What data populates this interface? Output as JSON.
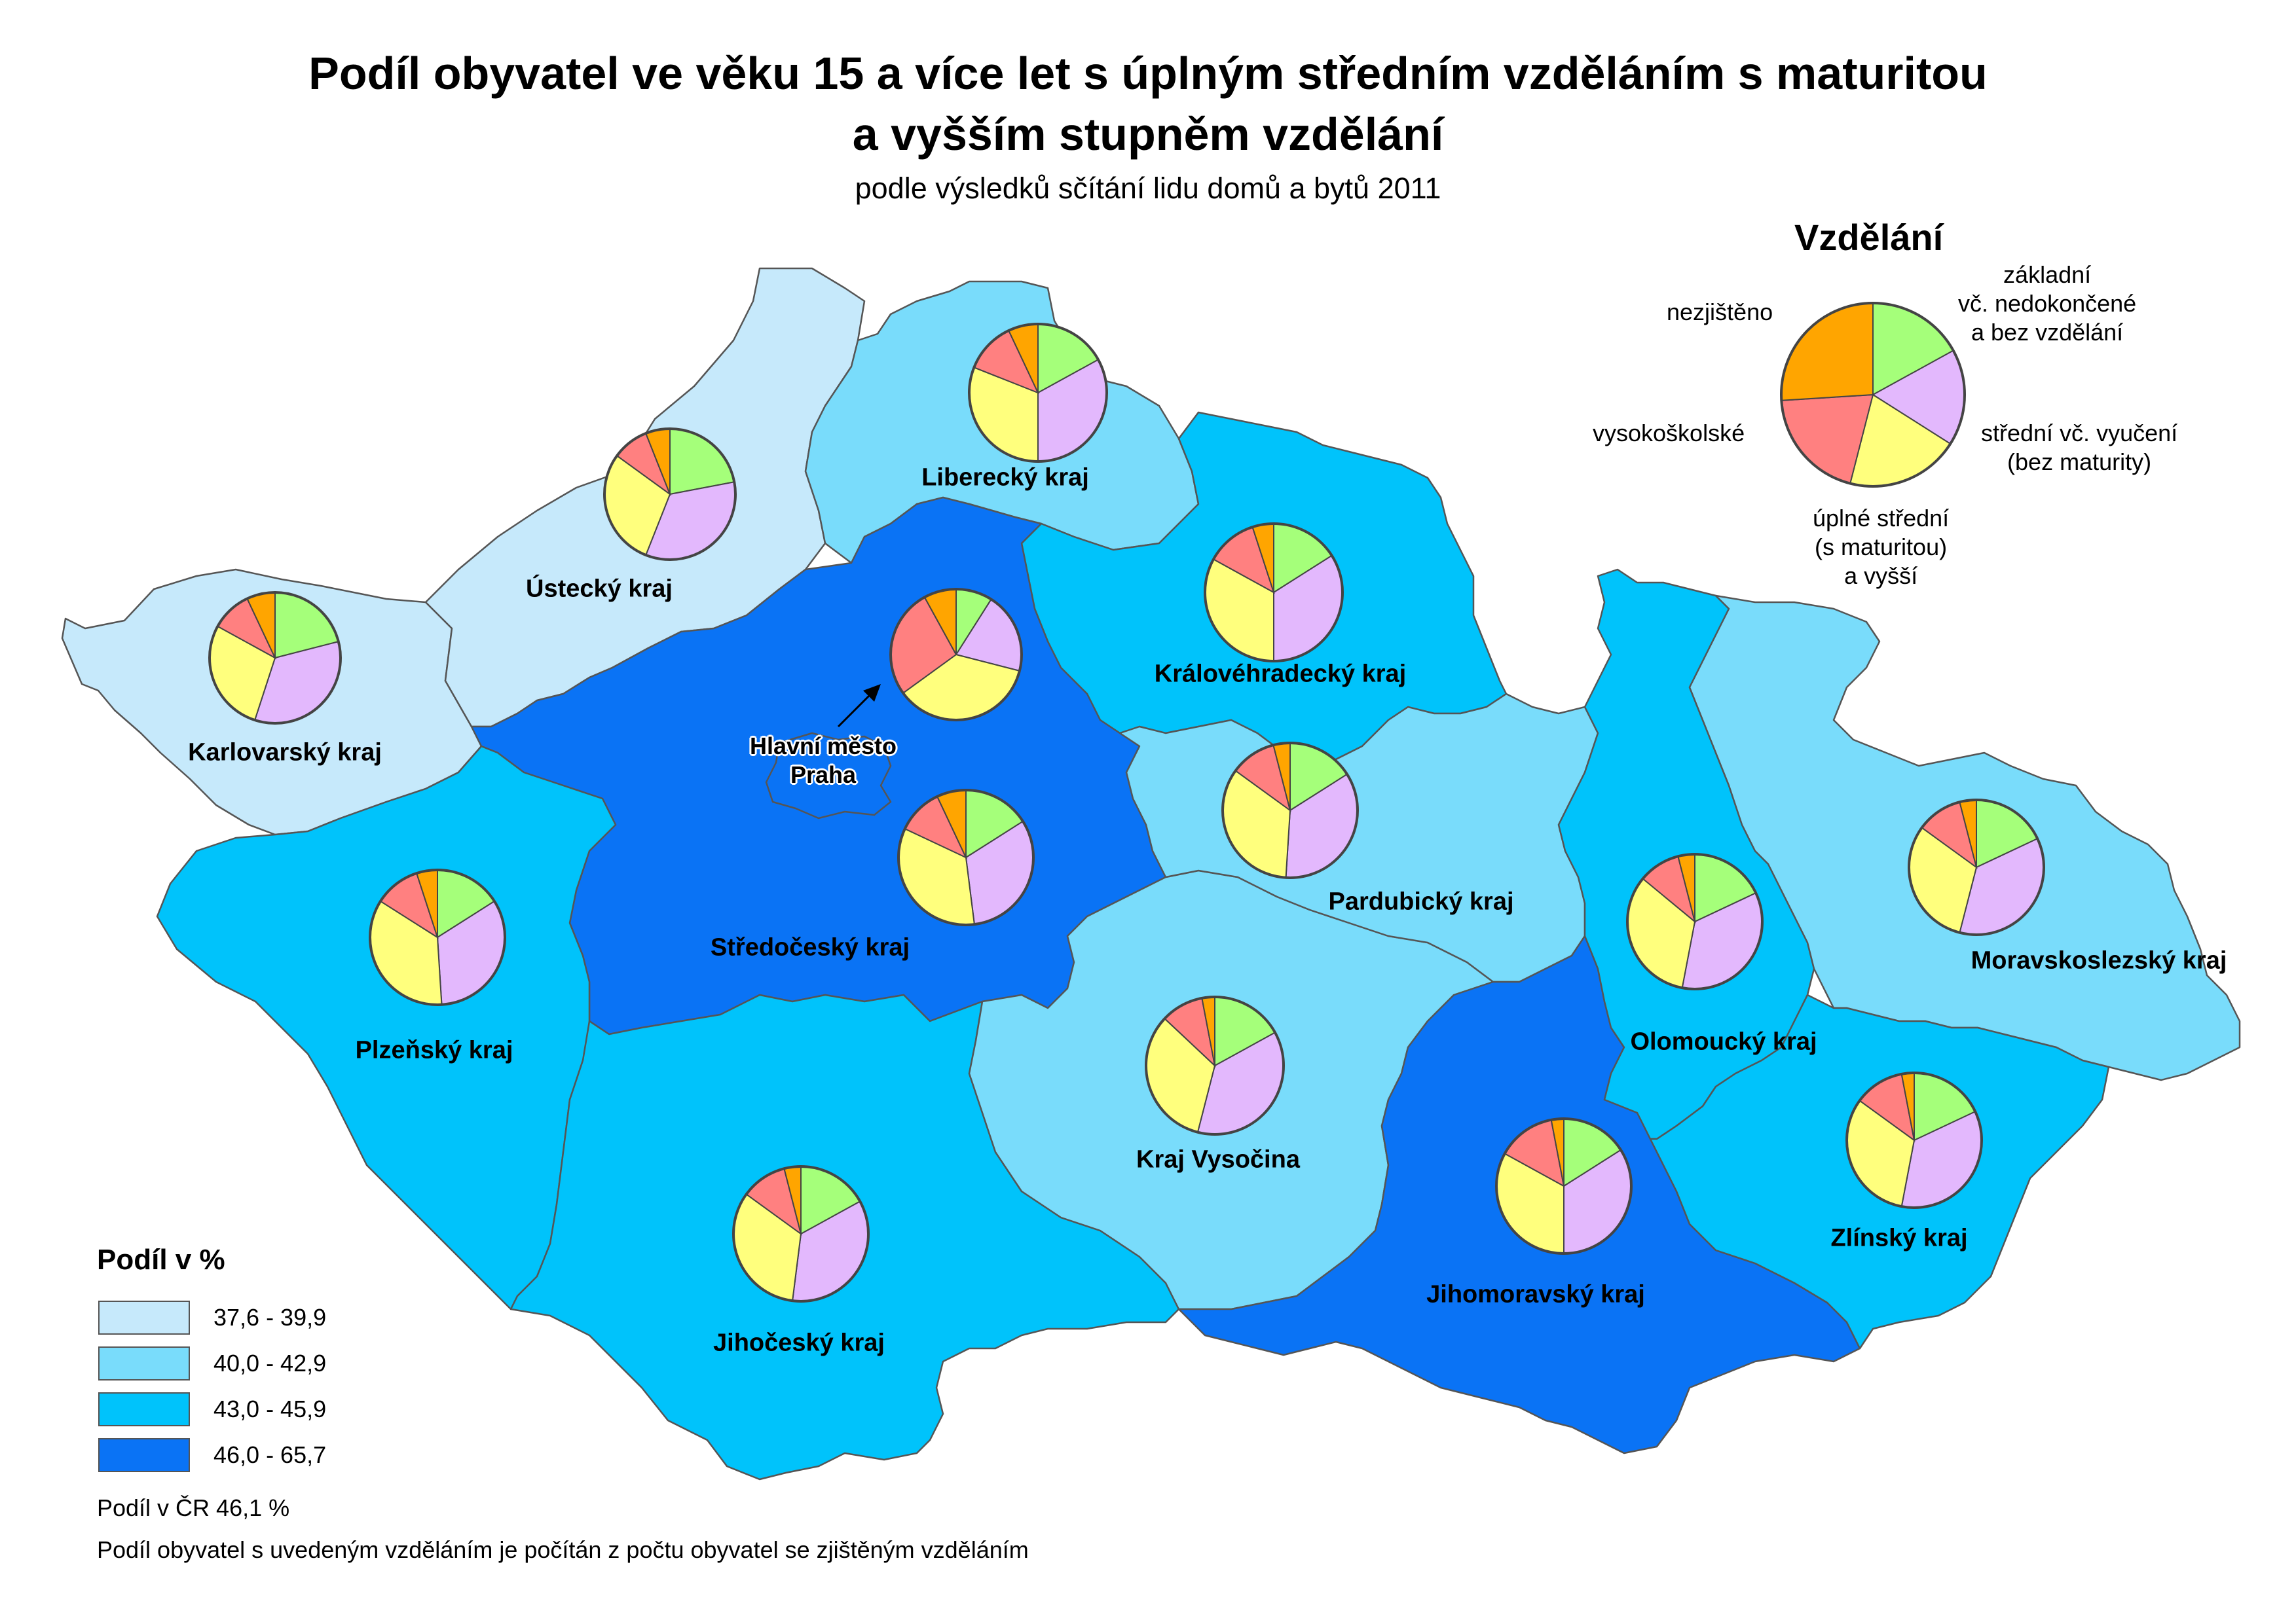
{
  "title_line1": "Podíl obyvatel ve věku 15 a více let s úplným středním vzděláním s maturitou",
  "title_line2": "a  vyšším stupněm vzdělání",
  "subtitle": "podle výsledků sčítání lidu domů a bytů 2011",
  "colors": {
    "class1": "#c6e9fb",
    "class2": "#79dcfb",
    "class3": "#00c3fb",
    "class4": "#0a73f5",
    "zakladni": "#a5ff7a",
    "stredni_vyuceni": "#e3b8fd",
    "uplne_stredni": "#ffff7d",
    "vysokoskolske": "#ff8080",
    "nezjisteno": "#ffa500",
    "border": "#555555",
    "pie_outline": "#444444"
  },
  "pie_legend": {
    "title": "Vzdělání",
    "labels": {
      "zakladni": [
        "základní",
        "vč. nedokončené",
        "a bez vzdělání"
      ],
      "stredni_vyuceni": [
        "střední vč. vyučení",
        "(bez maturity)"
      ],
      "uplne_stredni": [
        "úplné střední",
        "(s maturitou)",
        "a vyšší"
      ],
      "vysokoskolske": [
        "vysokoškolské"
      ],
      "nezjisteno": [
        "nezjištěno"
      ]
    },
    "shares": [
      0.17,
      0.17,
      0.2,
      0.2,
      0.26
    ]
  },
  "regions": [
    {
      "name": "Karlovarský kraj",
      "class": 1,
      "shares": [
        0.21,
        0.34,
        0.28,
        0.1,
        0.07
      ]
    },
    {
      "name": "Ústecký kraj",
      "class": 1,
      "shares": [
        0.22,
        0.34,
        0.29,
        0.09,
        0.06
      ]
    },
    {
      "name": "Liberecký kraj",
      "class": 2,
      "shares": [
        0.17,
        0.33,
        0.31,
        0.12,
        0.07
      ]
    },
    {
      "name": "Královéhradecký kraj",
      "class": 3,
      "shares": [
        0.16,
        0.34,
        0.33,
        0.12,
        0.05
      ]
    },
    {
      "name": "Hlavní město Praha",
      "class": 4,
      "shares": [
        0.09,
        0.2,
        0.36,
        0.27,
        0.08
      ]
    },
    {
      "name": "Středočeský kraj",
      "class": 4,
      "shares": [
        0.16,
        0.32,
        0.34,
        0.11,
        0.07
      ]
    },
    {
      "name": "Pardubický kraj",
      "class": 2,
      "shares": [
        0.16,
        0.35,
        0.34,
        0.11,
        0.04
      ]
    },
    {
      "name": "Plzeňský kraj",
      "class": 3,
      "shares": [
        0.16,
        0.33,
        0.35,
        0.11,
        0.05
      ]
    },
    {
      "name": "Olomoucký kraj",
      "class": 3,
      "shares": [
        0.18,
        0.35,
        0.33,
        0.1,
        0.04
      ]
    },
    {
      "name": "Moravskoslezský kraj",
      "class": 2,
      "shares": [
        0.18,
        0.36,
        0.31,
        0.11,
        0.04
      ]
    },
    {
      "name": "Kraj Vysočina",
      "class": 2,
      "shares": [
        0.17,
        0.37,
        0.33,
        0.1,
        0.03
      ]
    },
    {
      "name": "Jihočeský kraj",
      "class": 3,
      "shares": [
        0.17,
        0.35,
        0.33,
        0.11,
        0.04
      ]
    },
    {
      "name": "Jihomoravský kraj",
      "class": 4,
      "shares": [
        0.16,
        0.34,
        0.33,
        0.14,
        0.03
      ]
    },
    {
      "name": "Zlínský kraj",
      "class": 3,
      "shares": [
        0.18,
        0.35,
        0.32,
        0.12,
        0.03
      ]
    }
  ],
  "legend": {
    "title": "Podíl v %",
    "classes": [
      "37,6 - 39,9",
      "40,0 - 42,9",
      "43,0 - 45,9",
      "46,0 - 65,7"
    ]
  },
  "notes": {
    "cr_share": "Podíl v ČR 46,1 %",
    "method": "Podíl obyvatel s uvedeným vzděláním je počítán z počtu obyvatel se zjištěným vzděláním"
  },
  "praha_label_lines": [
    "Hlavní město",
    "Praha"
  ]
}
